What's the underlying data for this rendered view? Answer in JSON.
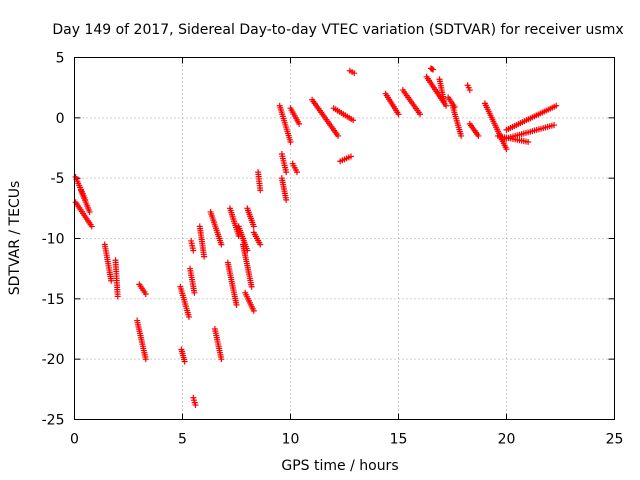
{
  "chart_data": {
    "type": "scatter",
    "title": "Day 149 of 2017, Sidereal Day-to-day VTEC variation (SDTVAR) for receiver usmx",
    "xlabel": "GPS time / hours",
    "ylabel": "SDTVAR / TECUs",
    "xlim": [
      0,
      25
    ],
    "ylim": [
      -25,
      5
    ],
    "xticks": [
      0,
      5,
      10,
      15,
      20,
      25
    ],
    "yticks": [
      -25,
      -20,
      -15,
      -10,
      -5,
      0,
      5
    ],
    "xtick_labels": [
      "0",
      "5",
      "10",
      "15",
      "20",
      "25"
    ],
    "ytick_labels": [
      "-25",
      "-20",
      "-15",
      "-10",
      "-5",
      "0",
      "5"
    ],
    "grid": true,
    "marker": "plus",
    "color": "#ff0000",
    "segments": [
      [
        0.05,
        -4.9,
        0.5,
        -6.8
      ],
      [
        0.05,
        -7.0,
        0.8,
        -9.0
      ],
      [
        0.3,
        -6.0,
        0.7,
        -7.8
      ],
      [
        1.4,
        -10.5,
        1.7,
        -13.5
      ],
      [
        1.9,
        -11.8,
        2.0,
        -14.8
      ],
      [
        3.0,
        -13.8,
        3.3,
        -14.6
      ],
      [
        2.9,
        -16.8,
        3.3,
        -20.0
      ],
      [
        4.9,
        -14.0,
        5.3,
        -16.5
      ],
      [
        4.95,
        -19.2,
        5.1,
        -20.2
      ],
      [
        5.35,
        -12.5,
        5.55,
        -14.5
      ],
      [
        5.5,
        -23.2,
        5.6,
        -23.8
      ],
      [
        5.8,
        -9.0,
        6.0,
        -11.5
      ],
      [
        5.4,
        -10.2,
        5.5,
        -11.0
      ],
      [
        6.3,
        -7.8,
        6.8,
        -10.5
      ],
      [
        6.5,
        -17.5,
        6.8,
        -20.0
      ],
      [
        7.2,
        -7.5,
        7.6,
        -9.8
      ],
      [
        7.1,
        -12.0,
        7.5,
        -15.5
      ],
      [
        7.6,
        -9.0,
        8.0,
        -11.0
      ],
      [
        7.8,
        -10.5,
        8.2,
        -14.0
      ],
      [
        7.9,
        -14.5,
        8.3,
        -16.0
      ],
      [
        8.0,
        -7.5,
        8.3,
        -9.0
      ],
      [
        8.5,
        -4.5,
        8.6,
        -6.0
      ],
      [
        8.3,
        -9.5,
        8.6,
        -10.5
      ],
      [
        9.6,
        -5.0,
        9.8,
        -6.8
      ],
      [
        9.6,
        -3.0,
        9.8,
        -4.5
      ],
      [
        10.1,
        -3.8,
        10.3,
        -4.5
      ],
      [
        9.5,
        1.0,
        10.0,
        -2.0
      ],
      [
        10.0,
        0.8,
        10.4,
        -0.5
      ],
      [
        11.0,
        1.5,
        12.2,
        -1.5
      ],
      [
        12.0,
        0.8,
        12.9,
        -0.2
      ],
      [
        12.3,
        -3.6,
        12.8,
        -3.2
      ],
      [
        12.75,
        3.9,
        12.95,
        3.7
      ],
      [
        14.4,
        2.0,
        15.0,
        0.3
      ],
      [
        15.2,
        2.3,
        16.0,
        0.3
      ],
      [
        16.3,
        3.4,
        17.2,
        1.0
      ],
      [
        16.9,
        3.2,
        17.1,
        1.4
      ],
      [
        17.3,
        1.7,
        17.6,
        0.9
      ],
      [
        16.5,
        4.1,
        16.6,
        4.0
      ],
      [
        18.2,
        2.7,
        18.3,
        2.3
      ],
      [
        17.5,
        1.0,
        17.9,
        -1.5
      ],
      [
        18.3,
        -0.5,
        18.7,
        -1.5
      ],
      [
        19.0,
        1.2,
        20.0,
        -2.6
      ],
      [
        19.6,
        -1.5,
        21.0,
        -2.0
      ],
      [
        19.8,
        -1.8,
        22.2,
        -0.6
      ],
      [
        20.0,
        -1.0,
        22.3,
        1.0
      ]
    ]
  }
}
